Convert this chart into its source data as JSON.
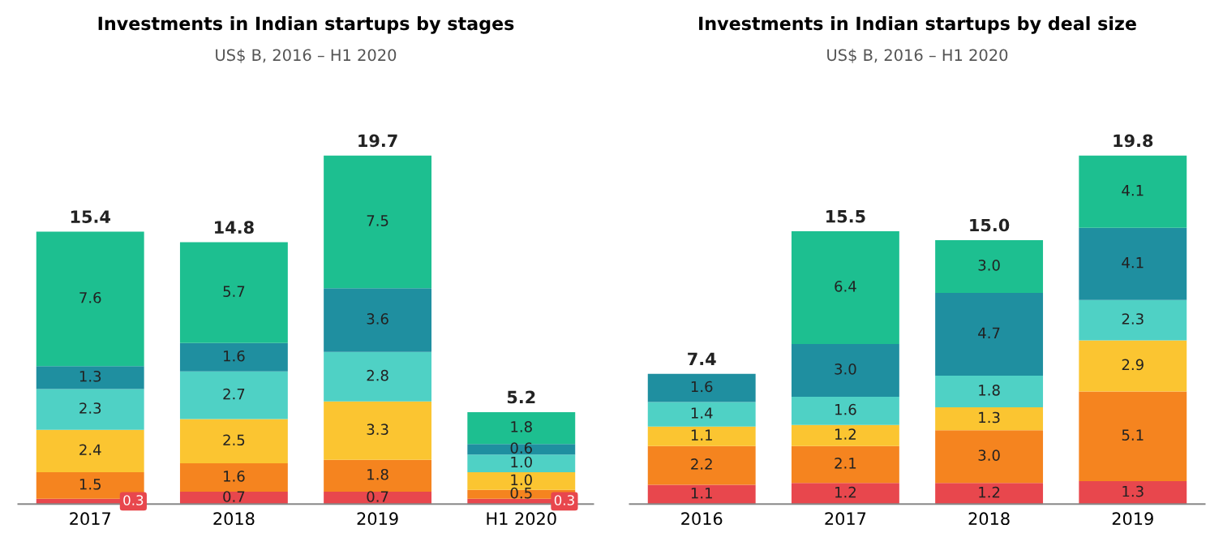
{
  "chart_data": [
    {
      "type": "bar",
      "stacked": true,
      "title": "Investments in Indian startups by stages",
      "subtitle": "US$ B, 2016 – H1 2020",
      "categories": [
        "2017",
        "2018",
        "2019",
        "H1 2020"
      ],
      "totals": [
        "15.4",
        "14.8",
        "19.7",
        "5.2"
      ],
      "series": [
        {
          "color": "#e8474d",
          "values": [
            0.3,
            0.7,
            0.7,
            0.3
          ],
          "value_labels": [
            "0.3",
            "0.7",
            "0.7",
            "0.3"
          ]
        },
        {
          "color": "#f5841f",
          "values": [
            1.5,
            1.6,
            1.8,
            0.5
          ],
          "value_labels": [
            "1.5",
            "1.6",
            "1.8",
            "0.5"
          ]
        },
        {
          "color": "#fbc531",
          "values": [
            2.4,
            2.5,
            3.3,
            1.0
          ],
          "value_labels": [
            "2.4",
            "2.5",
            "3.3",
            "1.0"
          ]
        },
        {
          "color": "#4fd1c5",
          "values": [
            2.3,
            2.7,
            2.8,
            1.0
          ],
          "value_labels": [
            "2.3",
            "2.7",
            "2.8",
            "1.0"
          ]
        },
        {
          "color": "#1f8fa0",
          "values": [
            1.3,
            1.6,
            3.6,
            0.6
          ],
          "value_labels": [
            "1.3",
            "1.6",
            "3.6",
            "0.6"
          ]
        },
        {
          "color": "#1dbf90",
          "values": [
            7.6,
            5.7,
            7.5,
            1.8
          ],
          "value_labels": [
            "7.6",
            "5.7",
            "7.5",
            "1.8"
          ]
        }
      ]
    },
    {
      "type": "bar",
      "stacked": true,
      "title": "Investments in Indian startups by deal size",
      "subtitle": "US$ B, 2016 – H1 2020",
      "categories": [
        "2016",
        "2017",
        "2018",
        "2019"
      ],
      "totals": [
        "7.4",
        "15.5",
        "15.0",
        "19.8"
      ],
      "series": [
        {
          "color": "#e8474d",
          "values": [
            1.1,
            1.2,
            1.2,
            1.3
          ],
          "value_labels": [
            "1.1",
            "1.2",
            "1.2",
            "1.3"
          ]
        },
        {
          "color": "#f5841f",
          "values": [
            2.2,
            2.1,
            3.0,
            5.1
          ],
          "value_labels": [
            "2.2",
            "2.1",
            "3.0",
            "5.1"
          ]
        },
        {
          "color": "#fbc531",
          "values": [
            1.1,
            1.2,
            1.3,
            2.9
          ],
          "value_labels": [
            "1.1",
            "1.2",
            "1.3",
            "2.9"
          ]
        },
        {
          "color": "#4fd1c5",
          "values": [
            1.4,
            1.6,
            1.8,
            2.3
          ],
          "value_labels": [
            "1.4",
            "1.6",
            "1.8",
            "2.3"
          ]
        },
        {
          "color": "#1f8fa0",
          "values": [
            1.6,
            3.0,
            4.7,
            4.1
          ],
          "value_labels": [
            "1.6",
            "3.0",
            "4.7",
            "4.1"
          ]
        },
        {
          "color": "#1dbf90",
          "values": [
            null,
            6.4,
            3.0,
            4.1
          ],
          "value_labels": [
            null,
            "6.4",
            "3.0",
            "4.1"
          ]
        }
      ]
    }
  ]
}
